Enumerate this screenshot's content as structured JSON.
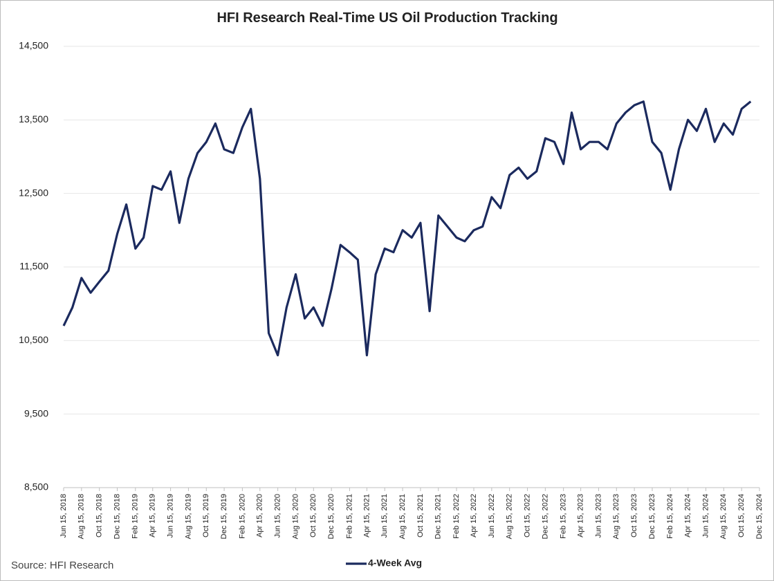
{
  "chart_data": {
    "type": "line",
    "title": "HFI Research Real-Time US Oil Production Tracking",
    "source": "Source: HFI Research",
    "x": [
      "Jun 15, 2018",
      "Jul 15, 2018",
      "Aug 15, 2018",
      "Sep 15, 2018",
      "Oct 15, 2018",
      "Nov 15, 2018",
      "Dec 15, 2018",
      "Jan 15, 2019",
      "Feb 15, 2019",
      "Mar 15, 2019",
      "Apr 15, 2019",
      "May 15, 2019",
      "Jun 15, 2019",
      "Jul 15, 2019",
      "Aug 15, 2019",
      "Sep 15, 2019",
      "Oct 15, 2019",
      "Nov 15, 2019",
      "Dec 15, 2019",
      "Jan 15, 2020",
      "Feb 15, 2020",
      "Mar 15, 2020",
      "Apr 15, 2020",
      "May 15, 2020",
      "Jun 15, 2020",
      "Jul 15, 2020",
      "Aug 15, 2020",
      "Sep 15, 2020",
      "Oct 15, 2020",
      "Nov 15, 2020",
      "Dec 15, 2020",
      "Jan 15, 2021",
      "Feb 15, 2021",
      "Mar 15, 2021",
      "Apr 15, 2021",
      "May 15, 2021",
      "Jun 15, 2021",
      "Jul 15, 2021",
      "Aug 15, 2021",
      "Sep 15, 2021",
      "Oct 15, 2021",
      "Nov 15, 2021",
      "Dec 15, 2021",
      "Jan 15, 2022",
      "Feb 15, 2022",
      "Mar 15, 2022",
      "Apr 15, 2022",
      "May 15, 2022",
      "Jun 15, 2022",
      "Jul 15, 2022",
      "Aug 15, 2022",
      "Sep 15, 2022",
      "Oct 15, 2022",
      "Nov 15, 2022",
      "Dec 15, 2022",
      "Jan 15, 2023",
      "Feb 15, 2023",
      "Mar 15, 2023",
      "Apr 15, 2023",
      "May 15, 2023",
      "Jun 15, 2023",
      "Jul 15, 2023",
      "Aug 15, 2023",
      "Sep 15, 2023",
      "Oct 15, 2023",
      "Nov 15, 2023",
      "Dec 15, 2023",
      "Jan 15, 2024",
      "Feb 15, 2024",
      "Mar 15, 2024",
      "Apr 15, 2024",
      "May 15, 2024",
      "Jun 15, 2024",
      "Jul 15, 2024",
      "Aug 15, 2024",
      "Sep 15, 2024",
      "Oct 15, 2024",
      "Nov 15, 2024"
    ],
    "series": [
      {
        "name": "4-Week Avg",
        "color": "#1b2a5e",
        "values": [
          10700,
          10950,
          11350,
          11150,
          11300,
          11450,
          11950,
          12350,
          11750,
          11900,
          12600,
          12550,
          12800,
          12100,
          12700,
          13050,
          13200,
          13450,
          13100,
          13050,
          13400,
          13650,
          12700,
          10600,
          10300,
          10950,
          11400,
          10800,
          10950,
          10700,
          11200,
          11800,
          11700,
          11600,
          10300,
          11400,
          11750,
          11700,
          12000,
          11900,
          12100,
          10900,
          12200,
          12050,
          11900,
          11850,
          12000,
          12050,
          12450,
          12300,
          12750,
          12850,
          12700,
          12800,
          13250,
          13200,
          12900,
          13600,
          13100,
          13200,
          13200,
          13100,
          13450,
          13600,
          13700,
          13750,
          13200,
          13050,
          12550,
          13100,
          13500,
          13350,
          13650,
          13200,
          13450,
          13300,
          13650,
          13750
        ]
      }
    ],
    "xlim": [
      "Jun 15, 2018",
      "Dec 15, 2024"
    ],
    "xticks": [
      "Jun 15, 2018",
      "Aug 15, 2018",
      "Oct 15, 2018",
      "Dec 15, 2018",
      "Feb 15, 2019",
      "Apr 15, 2019",
      "Jun 15, 2019",
      "Aug 15, 2019",
      "Oct 15, 2019",
      "Dec 15, 2019",
      "Feb 15, 2020",
      "Apr 15, 2020",
      "Jun 15, 2020",
      "Aug 15, 2020",
      "Oct 15, 2020",
      "Dec 15, 2020",
      "Feb 15, 2021",
      "Apr 15, 2021",
      "Jun 15, 2021",
      "Aug 15, 2021",
      "Oct 15, 2021",
      "Dec 15, 2021",
      "Feb 15, 2022",
      "Apr 15, 2022",
      "Jun 15, 2022",
      "Aug 15, 2022",
      "Oct 15, 2022",
      "Dec 15, 2022",
      "Feb 15, 2023",
      "Apr 15, 2023",
      "Jun 15, 2023",
      "Aug 15, 2023",
      "Oct 15, 2023",
      "Dec 15, 2023",
      "Feb 15, 2024",
      "Apr 15, 2024",
      "Jun 15, 2024",
      "Aug 15, 2024",
      "Oct 15, 2024",
      "Dec 15, 2024"
    ],
    "ylim": [
      8500,
      14500
    ],
    "yticks": [
      {
        "value": 8500,
        "label": "8,500"
      },
      {
        "value": 9500,
        "label": "9,500"
      },
      {
        "value": 10500,
        "label": "10,500"
      },
      {
        "value": 11500,
        "label": "11,500"
      },
      {
        "value": 12500,
        "label": "12,500"
      },
      {
        "value": 13500,
        "label": "13,500"
      },
      {
        "value": 14500,
        "label": "14,500"
      }
    ],
    "grid": true,
    "legend": "bottom"
  }
}
